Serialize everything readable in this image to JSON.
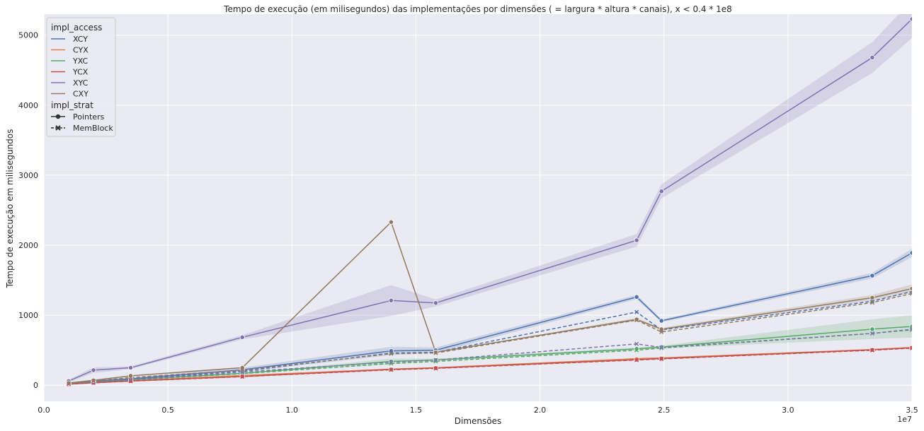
{
  "chart_data": {
    "type": "line",
    "title": "Tempo de execução (em milisegundos) das implementações por dimensões ( = largura * altura * canais), x < 0.4 * 1e8",
    "xlabel": "Dimensões",
    "ylabel": "Tempo de execução em milisegundos",
    "x_offset_label": "1e7",
    "xlim": [
      0,
      3.5
    ],
    "ylim": [
      -230,
      5300
    ],
    "x_ticks": [
      0.0,
      0.5,
      1.0,
      1.5,
      2.0,
      2.5,
      3.0,
      3.5
    ],
    "x_tick_labels": [
      "0.0",
      "0.5",
      "1.0",
      "1.5",
      "2.0",
      "2.5",
      "3.0",
      "3.5"
    ],
    "y_ticks": [
      0,
      1000,
      2000,
      3000,
      4000,
      5000
    ],
    "y_tick_labels": [
      "0",
      "1000",
      "2000",
      "3000",
      "4000",
      "5000"
    ],
    "grid": true,
    "legend_placement": "top-left",
    "legend": {
      "hue_title": "impl_access",
      "hue_entries": [
        {
          "label": "XCY",
          "color": "#4c72b0"
        },
        {
          "label": "CYX",
          "color": "#dd8452"
        },
        {
          "label": "YXC",
          "color": "#55a868"
        },
        {
          "label": "YCX",
          "color": "#c44e52"
        },
        {
          "label": "XYC",
          "color": "#8172b3"
        },
        {
          "label": "CXY",
          "color": "#937860"
        }
      ],
      "style_title": "impl_strat",
      "style_entries": [
        {
          "label": "Pointers",
          "dash": "solid",
          "marker": "circle"
        },
        {
          "label": "MemBlock",
          "dash": "dashed",
          "marker": "x"
        }
      ]
    },
    "series": [
      {
        "name": "XCY",
        "impl_strat": "Pointers",
        "color": "#4c72b0",
        "x": [
          0.1,
          0.2,
          0.35,
          0.8,
          1.4,
          1.58,
          2.39,
          2.49,
          3.34,
          3.5
        ],
        "y": [
          25,
          60,
          90,
          220,
          490,
          500,
          1260,
          920,
          1565,
          1890
        ],
        "band": [
          20,
          20,
          20,
          30,
          60,
          40,
          30,
          20,
          40,
          60
        ]
      },
      {
        "name": "XCY",
        "impl_strat": "MemBlock",
        "color": "#4c72b0",
        "x": [
          0.1,
          0.2,
          0.35,
          0.8,
          1.4,
          1.58,
          2.39,
          2.49,
          3.34,
          3.5
        ],
        "y": [
          22,
          55,
          85,
          200,
          460,
          470,
          1045,
          790,
          1200,
          1340
        ],
        "band": [
          0,
          0,
          0,
          0,
          0,
          0,
          0,
          0,
          0,
          0
        ]
      },
      {
        "name": "CYX",
        "impl_strat": "Pointers",
        "color": "#dd8452",
        "x": [
          0.1,
          0.2,
          0.35,
          0.8,
          1.4,
          1.58,
          2.39,
          2.49,
          3.34,
          3.5
        ],
        "y": [
          18,
          40,
          65,
          140,
          230,
          250,
          380,
          390,
          510,
          540
        ],
        "band": [
          0,
          0,
          0,
          0,
          0,
          0,
          0,
          0,
          0,
          0
        ]
      },
      {
        "name": "CYX",
        "impl_strat": "MemBlock",
        "color": "#dd8452",
        "x": [
          0.1,
          0.2,
          0.35,
          0.8,
          1.4,
          1.58,
          2.39,
          2.49,
          3.34,
          3.5
        ],
        "y": [
          16,
          38,
          62,
          135,
          225,
          245,
          370,
          385,
          500,
          530
        ],
        "band": [
          0,
          0,
          0,
          0,
          0,
          0,
          0,
          0,
          0,
          0
        ]
      },
      {
        "name": "YXC",
        "impl_strat": "Pointers",
        "color": "#55a868",
        "x": [
          0.1,
          0.2,
          0.35,
          0.8,
          1.4,
          1.58,
          2.39,
          2.49,
          3.34,
          3.5
        ],
        "y": [
          20,
          45,
          80,
          170,
          340,
          360,
          520,
          545,
          800,
          840
        ],
        "band": [
          0,
          0,
          0,
          0,
          40,
          20,
          20,
          20,
          140,
          160
        ]
      },
      {
        "name": "YXC",
        "impl_strat": "MemBlock",
        "color": "#55a868",
        "x": [
          0.1,
          0.2,
          0.35,
          0.8,
          1.4,
          1.58,
          2.39,
          2.49,
          3.34,
          3.5
        ],
        "y": [
          18,
          42,
          75,
          165,
          310,
          340,
          500,
          530,
          740,
          790
        ],
        "band": [
          0,
          0,
          0,
          0,
          0,
          0,
          0,
          0,
          0,
          0
        ]
      },
      {
        "name": "YCX",
        "impl_strat": "Pointers",
        "color": "#c44e52",
        "x": [
          0.1,
          0.2,
          0.35,
          0.8,
          1.4,
          1.58,
          2.39,
          2.49,
          3.34,
          3.5
        ],
        "y": [
          15,
          35,
          60,
          125,
          225,
          245,
          365,
          380,
          505,
          535
        ],
        "band": [
          0,
          0,
          0,
          0,
          0,
          0,
          0,
          0,
          0,
          0
        ]
      },
      {
        "name": "YCX",
        "impl_strat": "MemBlock",
        "color": "#c44e52",
        "x": [
          0.1,
          0.2,
          0.35,
          0.8,
          1.4,
          1.58,
          2.39,
          2.49,
          3.34,
          3.5
        ],
        "y": [
          14,
          34,
          58,
          122,
          220,
          240,
          360,
          375,
          500,
          530
        ],
        "band": [
          0,
          0,
          0,
          0,
          0,
          0,
          0,
          0,
          0,
          0
        ]
      },
      {
        "name": "XYC",
        "impl_strat": "Pointers",
        "color": "#8172b3",
        "x": [
          0.1,
          0.2,
          0.35,
          0.8,
          1.4,
          1.58,
          2.39,
          2.49,
          3.34,
          3.5
        ],
        "y": [
          60,
          215,
          250,
          685,
          1210,
          1175,
          2070,
          2770,
          4680,
          5230
        ],
        "band": [
          20,
          40,
          20,
          30,
          220,
          50,
          90,
          100,
          220,
          270
        ]
      },
      {
        "name": "XYC",
        "impl_strat": "MemBlock",
        "color": "#8172b3",
        "x": [
          0.1,
          0.2,
          0.35,
          0.8,
          1.4,
          1.58,
          2.39,
          2.49,
          3.34,
          3.5
        ],
        "y": [
          22,
          50,
          80,
          190,
          330,
          360,
          590,
          540,
          740,
          800
        ],
        "band": [
          0,
          0,
          0,
          0,
          0,
          0,
          0,
          0,
          0,
          0
        ]
      },
      {
        "name": "CXY",
        "impl_strat": "Pointers",
        "color": "#937860",
        "x": [
          0.1,
          0.2,
          0.35,
          0.8,
          1.4,
          1.58,
          2.39,
          2.49,
          3.34,
          3.5
        ],
        "y": [
          30,
          70,
          135,
          250,
          2330,
          470,
          940,
          800,
          1250,
          1380
        ],
        "band": [
          0,
          0,
          0,
          0,
          0,
          0,
          20,
          20,
          40,
          60
        ]
      },
      {
        "name": "CXY",
        "impl_strat": "MemBlock",
        "color": "#937860",
        "x": [
          0.1,
          0.2,
          0.35,
          0.8,
          1.4,
          1.58,
          2.39,
          2.49,
          3.34,
          3.5
        ],
        "y": [
          25,
          60,
          110,
          215,
          450,
          460,
          930,
          760,
          1180,
          1310
        ],
        "band": [
          0,
          0,
          0,
          0,
          0,
          0,
          0,
          0,
          0,
          0
        ]
      }
    ]
  }
}
